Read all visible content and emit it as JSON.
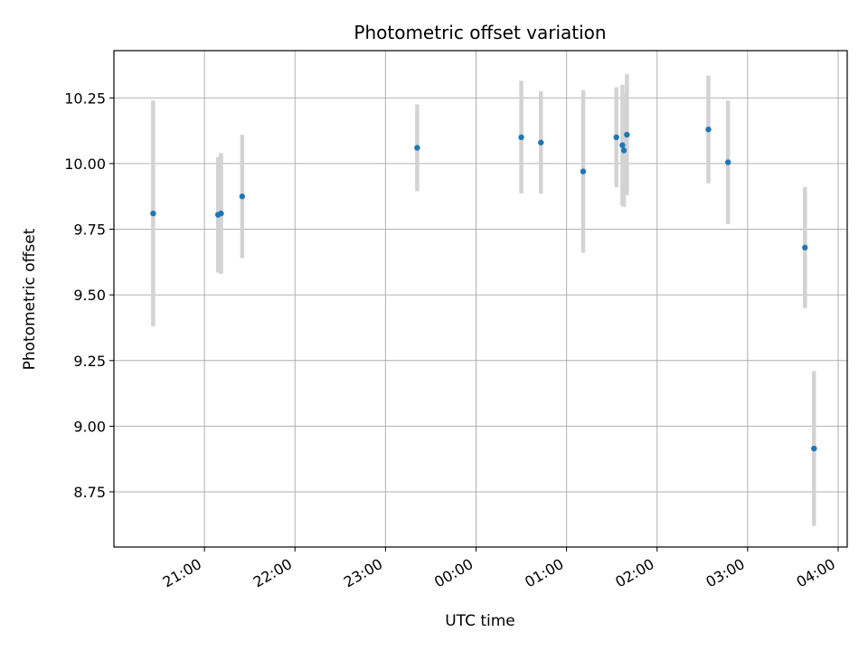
{
  "chart_data": {
    "type": "scatter",
    "title": "Photometric offset variation",
    "xlabel": "UTC time",
    "ylabel": "Photometric offset",
    "grid": true,
    "x_tick_labels": [
      "21:00",
      "22:00",
      "23:00",
      "00:00",
      "01:00",
      "02:00",
      "03:00",
      "04:00"
    ],
    "x_tick_hours": [
      21,
      22,
      23,
      24,
      25,
      26,
      27,
      28
    ],
    "xlim_hours": [
      20.0,
      28.1
    ],
    "y_ticks": [
      8.75,
      9.0,
      9.25,
      9.5,
      9.75,
      10.0,
      10.25
    ],
    "ylim": [
      8.54,
      10.43
    ],
    "point_color": "#1f77b4",
    "errorbar_color": "#d3d3d3",
    "points": [
      {
        "time": "20:26",
        "y": 9.81,
        "err": 0.43
      },
      {
        "time": "21:09",
        "y": 9.805,
        "err": 0.22
      },
      {
        "time": "21:11",
        "y": 9.81,
        "err": 0.23
      },
      {
        "time": "21:25",
        "y": 9.875,
        "err": 0.235
      },
      {
        "time": "23:21",
        "y": 10.06,
        "err": 0.165
      },
      {
        "time": "00:30",
        "y": 10.1,
        "err": 0.215
      },
      {
        "time": "00:43",
        "y": 10.08,
        "err": 0.195
      },
      {
        "time": "01:11",
        "y": 9.97,
        "err": 0.31
      },
      {
        "time": "01:33",
        "y": 10.1,
        "err": 0.19
      },
      {
        "time": "01:37",
        "y": 10.07,
        "err": 0.23
      },
      {
        "time": "01:38",
        "y": 10.05,
        "err": 0.215
      },
      {
        "time": "01:40",
        "y": 10.11,
        "err": 0.23
      },
      {
        "time": "02:34",
        "y": 10.13,
        "err": 0.205
      },
      {
        "time": "02:47",
        "y": 10.005,
        "err": 0.235
      },
      {
        "time": "03:38",
        "y": 9.68,
        "err": 0.23
      },
      {
        "time": "03:44",
        "y": 8.915,
        "err": 0.295
      }
    ]
  }
}
